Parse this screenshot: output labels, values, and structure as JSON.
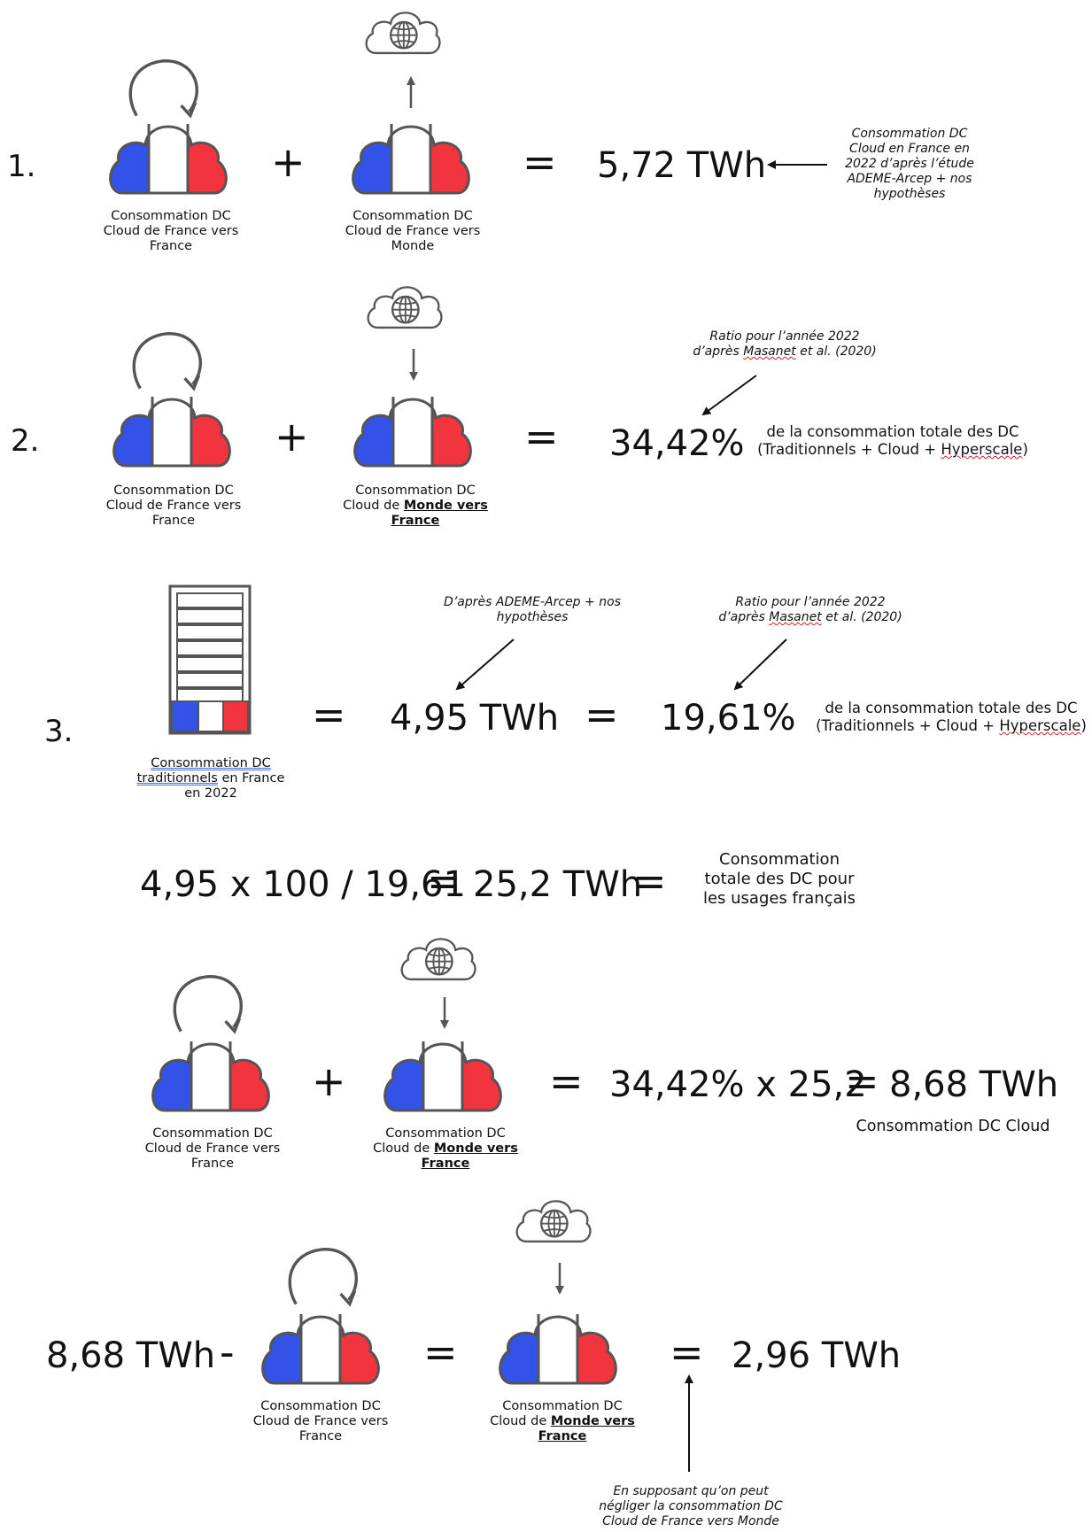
{
  "colors": {
    "flag_blue": "#3352e8",
    "flag_white": "#ffffff",
    "flag_red": "#f2343e",
    "outline": "#555555"
  },
  "icons": {
    "cloud_local": "cloud-france-with-circular-arrow-icon",
    "cloud_export": "cloud-france-with-arrow-up-to-world-icon",
    "cloud_import": "cloud-france-with-arrow-down-from-world-icon",
    "server": "server-rack-france-icon",
    "globe_cloud": "globe-cloud-icon"
  },
  "step1": {
    "number": "1.",
    "left_caption": [
      "Consommation DC",
      "Cloud de France vers",
      "France"
    ],
    "plus": "+",
    "right_caption": [
      "Consommation DC",
      "Cloud de France vers",
      "Monde"
    ],
    "equals": "=",
    "result": "5,72 TWh",
    "note": [
      "Consommation DC",
      "Cloud en France en",
      "2022 d’après l’étude",
      "ADEME-Arcep + nos",
      "hypothèses"
    ]
  },
  "step2": {
    "number": "2.",
    "left_caption": [
      "Consommation DC",
      "Cloud de France vers",
      "France"
    ],
    "plus": "+",
    "right_caption_1": "Consommation DC",
    "right_caption_2a": "Cloud de ",
    "right_caption_2b": "Monde vers",
    "right_caption_3": "France",
    "equals": "=",
    "result": "34,42%",
    "desc_1": "de la consommation totale des DC",
    "desc_2a": "(Traditionnels + Cloud + ",
    "desc_2b": "Hyperscale",
    "desc_2c": ")",
    "note_1": "Ratio pour l’année 2022",
    "note_2a": "d’après ",
    "note_2b": "Masanet",
    "note_2c": " et al. (2020)"
  },
  "step3": {
    "number": "3.",
    "server_caption_1": "Consommation DC",
    "server_caption_2a": "traditionnels",
    "server_caption_2b": " en France",
    "server_caption_3": "en 2022",
    "equals_1": "=",
    "value_twh": "4,95 TWh",
    "equals_2": "=",
    "value_pct": "19,61%",
    "note_left": [
      "D’après ADEME-Arcep + nos",
      "hypothèses"
    ],
    "note_right_1": "Ratio pour l’année 2022",
    "note_right_2a": "d’après ",
    "note_right_2b": "Masanet",
    "note_right_2c": " et al. (2020)",
    "desc_1": "de la consommation totale des DC",
    "desc_2a": "(Traditionnels + Cloud + ",
    "desc_2b": "Hyperscale",
    "desc_2c": ")"
  },
  "total": {
    "formula": "4,95 x 100 / 19,61",
    "equals_1": "=",
    "value": "25,2 TWh",
    "equals_2": "=",
    "desc": [
      "Consommation",
      "totale des DC pour",
      "les usages français"
    ]
  },
  "step4": {
    "left_caption": [
      "Consommation DC",
      "Cloud de France vers",
      "France"
    ],
    "plus": "+",
    "right_caption_1": "Consommation DC",
    "right_caption_2a": "Cloud de ",
    "right_caption_2b": "Monde vers",
    "right_caption_3": "France",
    "equals_1": "=",
    "formula": "34,42% x 25,2",
    "equals_2": "=",
    "result": "8,68 TWh",
    "result_label": "Consommation DC Cloud"
  },
  "step5": {
    "value": "8,68 TWh",
    "minus": "-",
    "left_caption": [
      "Consommation DC",
      "Cloud de France vers",
      "France"
    ],
    "equals_1": "=",
    "right_caption_1": "Consommation DC",
    "right_caption_2a": "Cloud de ",
    "right_caption_2b": "Monde vers",
    "right_caption_3": "France",
    "equals_2": "=",
    "result": "2,96 TWh",
    "note": [
      "En supposant qu’on peut",
      "négliger la consommation DC",
      "Cloud de France vers Monde"
    ]
  }
}
